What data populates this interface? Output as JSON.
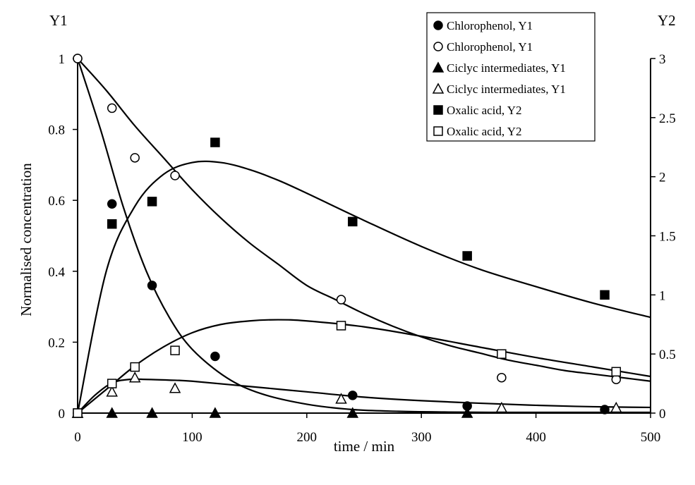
{
  "chart_data": {
    "type": "scatter",
    "title": "",
    "xlabel": "time / min",
    "ylabel": "Normalised concentration",
    "y1_label": "Y1",
    "y2_label": "Y2",
    "xlim": [
      0,
      500
    ],
    "ylim": [
      0,
      1
    ],
    "y2lim": [
      0,
      3
    ],
    "x_ticks": [
      "0",
      "100",
      "200",
      "300",
      "400",
      "500"
    ],
    "y1_ticks": [
      "0",
      "0.2",
      "0.4",
      "0.6",
      "0.8",
      "1"
    ],
    "y2_ticks": [
      "0",
      "0.5",
      "1",
      "1.5",
      "2",
      "2.5",
      "3"
    ],
    "grid": false,
    "legend_position": "top-right",
    "series": [
      {
        "name": "Chlorophenol, Y1",
        "marker": "circle-filled",
        "axis": "Y1",
        "x": [
          0,
          30,
          65,
          120,
          240,
          340,
          460
        ],
        "y": [
          1.0,
          0.59,
          0.36,
          0.16,
          0.05,
          0.02,
          0.01
        ]
      },
      {
        "name": "Chlorophenol, Y1",
        "marker": "circle-open",
        "axis": "Y1",
        "x": [
          0,
          30,
          50,
          85,
          230,
          370,
          470
        ],
        "y": [
          1.0,
          0.86,
          0.72,
          0.67,
          0.32,
          0.1,
          0.095
        ]
      },
      {
        "name": "Ciclyc intermediates, Y1",
        "marker": "triangle-filled",
        "axis": "Y1",
        "x": [
          0,
          30,
          65,
          120,
          240,
          340
        ],
        "y": [
          0,
          0,
          0,
          0,
          0,
          0
        ]
      },
      {
        "name": "Ciclyc intermediates, Y1",
        "marker": "triangle-open",
        "axis": "Y1",
        "x": [
          0,
          30,
          50,
          85,
          230,
          370,
          470
        ],
        "y": [
          0,
          0.06,
          0.1,
          0.07,
          0.04,
          0.015,
          0.015
        ]
      },
      {
        "name": "Oxalic acid, Y2",
        "marker": "square-filled",
        "axis": "Y2",
        "x": [
          0,
          30,
          65,
          120,
          240,
          340,
          460
        ],
        "y": [
          0,
          1.6,
          1.79,
          2.29,
          1.62,
          1.33,
          1.0
        ]
      },
      {
        "name": "Oxalic acid, Y2",
        "marker": "square-open",
        "axis": "Y2",
        "x": [
          0,
          30,
          50,
          85,
          230,
          370,
          470
        ],
        "y": [
          0,
          0.25,
          0.39,
          0.53,
          0.74,
          0.5,
          0.35
        ]
      }
    ],
    "fitted_curves": [
      {
        "axis": "Y1",
        "x": [
          0,
          20,
          40,
          60,
          80,
          100,
          130,
          160,
          200,
          240,
          280,
          320,
          360,
          400,
          450,
          500
        ],
        "y": [
          1.0,
          0.8,
          0.58,
          0.4,
          0.27,
          0.18,
          0.1,
          0.055,
          0.025,
          0.01,
          0.005,
          0.003,
          0.002,
          0.002,
          0.002,
          0.002
        ]
      },
      {
        "axis": "Y1",
        "x": [
          0,
          25,
          50,
          75,
          100,
          125,
          150,
          175,
          200,
          225,
          250,
          275,
          300,
          325,
          350,
          375,
          400,
          425,
          450,
          475,
          500
        ],
        "y": [
          1.0,
          0.91,
          0.81,
          0.72,
          0.63,
          0.55,
          0.48,
          0.42,
          0.36,
          0.32,
          0.28,
          0.245,
          0.215,
          0.19,
          0.17,
          0.15,
          0.135,
          0.12,
          0.11,
          0.1,
          0.09
        ]
      },
      {
        "axis": "Y1",
        "x": [
          0,
          15,
          30,
          45,
          60,
          80,
          100,
          150,
          200,
          250,
          300,
          350,
          400,
          450,
          500
        ],
        "y": [
          0,
          0.05,
          0.085,
          0.095,
          0.095,
          0.093,
          0.09,
          0.075,
          0.06,
          0.045,
          0.035,
          0.028,
          0.022,
          0.018,
          0.016
        ]
      },
      {
        "axis": "Y2",
        "x": [
          0,
          25,
          50,
          75,
          100,
          125,
          150,
          175,
          200,
          250,
          300,
          350,
          400,
          450,
          500
        ],
        "y": [
          0,
          1.2,
          1.75,
          2.02,
          2.12,
          2.12,
          2.06,
          1.97,
          1.86,
          1.63,
          1.41,
          1.22,
          1.07,
          0.93,
          0.81
        ]
      },
      {
        "axis": "Y2",
        "x": [
          0,
          25,
          50,
          75,
          100,
          125,
          150,
          175,
          200,
          250,
          300,
          350,
          400,
          450,
          500
        ],
        "y": [
          0,
          0.2,
          0.4,
          0.56,
          0.68,
          0.75,
          0.78,
          0.79,
          0.78,
          0.73,
          0.65,
          0.56,
          0.47,
          0.39,
          0.31
        ]
      }
    ]
  }
}
